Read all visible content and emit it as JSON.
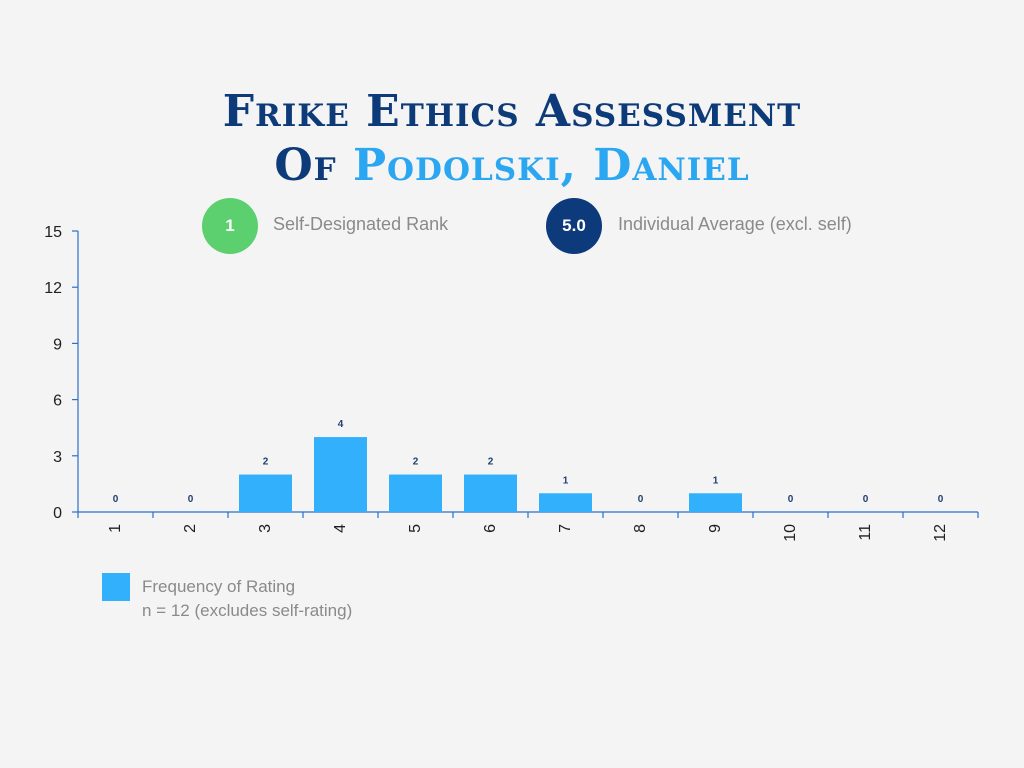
{
  "title": {
    "line1": "Frike Ethics Assessment",
    "line2_prefix": "Of ",
    "name": "Podolski, Daniel"
  },
  "badges": {
    "self_rank": {
      "value": "1",
      "label": "Self-Designated Rank",
      "color": "#5ccf6e"
    },
    "individual_average": {
      "value": "5.0",
      "label": "Individual Average (excl. self)",
      "color": "#0d3a7a"
    }
  },
  "legend": {
    "series_name": "Frequency of Rating",
    "note": "n = 12 (excludes self-rating)"
  },
  "colors": {
    "bar": "#33b0fb",
    "title": "#0d3a78",
    "title_accent": "#2aa7f0",
    "axis": "#2a6fc9",
    "text_gray": "#8a8a8a"
  },
  "chart_data": {
    "type": "bar",
    "categories": [
      "1",
      "2",
      "3",
      "4",
      "5",
      "6",
      "7",
      "8",
      "9",
      "10",
      "11",
      "12"
    ],
    "series": [
      {
        "name": "Frequency of Rating",
        "values": [
          0,
          0,
          2,
          4,
          2,
          2,
          1,
          0,
          1,
          0,
          0,
          0
        ]
      }
    ],
    "yticks": [
      "0",
      "3",
      "6",
      "9",
      "12",
      "15"
    ],
    "ylim": [
      0,
      15
    ],
    "xlabel": "",
    "ylabel": "",
    "grid": false,
    "data_labels": true,
    "legend_position": "bottom-left"
  }
}
